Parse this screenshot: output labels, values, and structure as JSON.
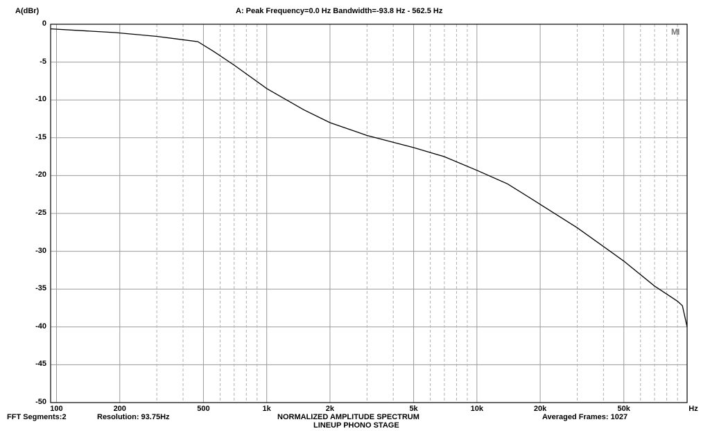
{
  "header": {
    "ylabel": "A(dBr)",
    "title": "A: Peak Frequency=0.0 Hz  Bandwidth=-93.8 Hz - 562.5 Hz",
    "watermark": "MI"
  },
  "footer": {
    "fft_segments": "FFT Segments:2",
    "resolution": "Resolution: 93.75Hz",
    "subtitle_1": "NORMALIZED AMPLITUDE SPECTRUM",
    "subtitle_2": "LINEUP PHONO STAGE",
    "averaged_frames": "Averaged Frames: 1027"
  },
  "chart_data": {
    "type": "line",
    "title": "A: Peak Frequency=0.0 Hz  Bandwidth=-93.8 Hz - 562.5 Hz",
    "ylabel": "A(dBr)",
    "xlabel": "Hz",
    "xscale": "log",
    "xlim": [
      93.75,
      100000
    ],
    "ylim": [
      -50,
      0
    ],
    "grid": true,
    "x_tick_labels": [
      "100",
      "200",
      "500",
      "1k",
      "2k",
      "5k",
      "10k",
      "20k",
      "50k",
      "Hz"
    ],
    "x_tick_values": [
      100,
      200,
      500,
      1000,
      2000,
      5000,
      10000,
      20000,
      50000
    ],
    "y_ticks": [
      0,
      -5,
      -10,
      -15,
      -20,
      -25,
      -30,
      -35,
      -40,
      -45,
      -50
    ],
    "series": [
      {
        "color": "#000000",
        "x": [
          93.75,
          190,
          300,
          470,
          560,
          700,
          1000,
          1500,
          2000,
          3000,
          5000,
          7000,
          10000,
          14000,
          20000,
          30000,
          50000,
          70000,
          90000,
          95000,
          100000
        ],
        "y": [
          -0.6,
          -1.1,
          -1.6,
          -2.3,
          -3.6,
          -5.4,
          -8.5,
          -11.3,
          -13.0,
          -14.7,
          -16.3,
          -17.5,
          -19.3,
          -21.1,
          -23.8,
          -26.9,
          -31.3,
          -34.6,
          -36.6,
          -37.2,
          -40.0
        ]
      }
    ]
  }
}
